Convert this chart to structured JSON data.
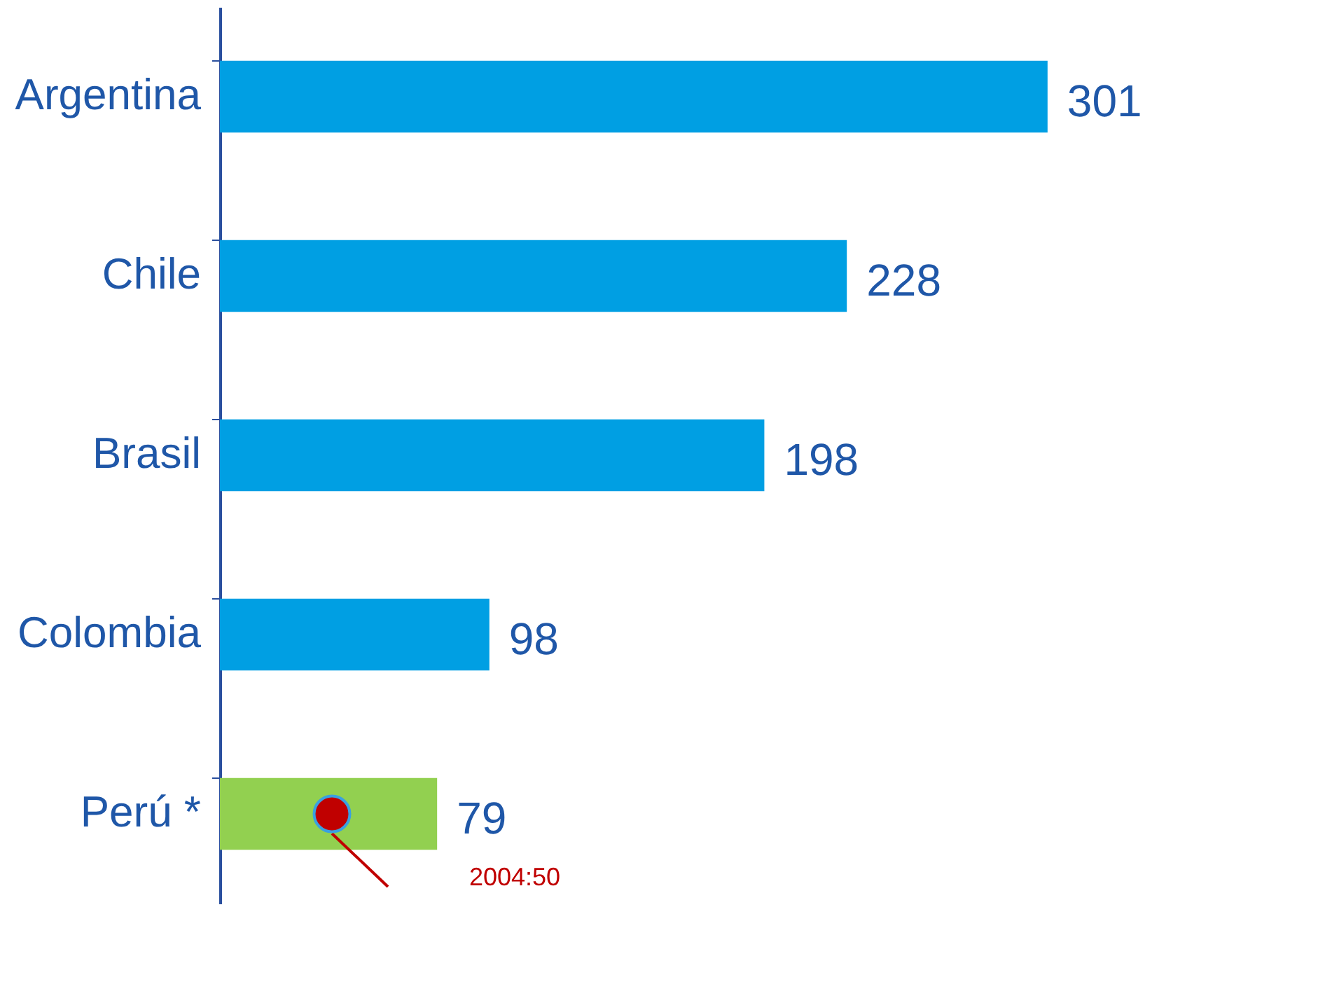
{
  "chart_data": {
    "type": "bar",
    "orientation": "horizontal",
    "categories": [
      "Argentina",
      "Chile",
      "Brasil",
      "Colombia",
      "Perú *"
    ],
    "values": [
      301,
      228,
      198,
      98,
      79
    ],
    "colors": [
      "#009fe3",
      "#009fe3",
      "#009fe3",
      "#009fe3",
      "#92d050"
    ],
    "data_labels": true,
    "tick_labels": "y",
    "grid": false,
    "annotations": [
      "2004:50"
    ]
  }
}
